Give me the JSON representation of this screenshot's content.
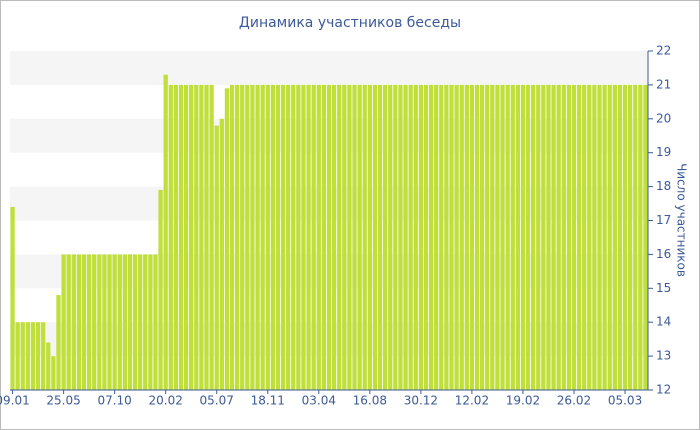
{
  "chart_data": {
    "type": "bar",
    "title": "Динамика участников беседы",
    "y_axis_label": "Число участников",
    "categories": [
      "09.01",
      null,
      null,
      null,
      null,
      null,
      null,
      null,
      null,
      null,
      "25.05",
      null,
      null,
      null,
      null,
      null,
      null,
      null,
      null,
      null,
      "07.10",
      null,
      null,
      null,
      null,
      null,
      null,
      null,
      null,
      null,
      "20.02",
      null,
      null,
      null,
      null,
      null,
      null,
      null,
      null,
      null,
      "05.07",
      null,
      null,
      null,
      null,
      null,
      null,
      null,
      null,
      null,
      "18.11",
      null,
      null,
      null,
      null,
      null,
      null,
      null,
      null,
      null,
      "03.04",
      null,
      null,
      null,
      null,
      null,
      null,
      null,
      null,
      null,
      "16.08",
      null,
      null,
      null,
      null,
      null,
      null,
      null,
      null,
      null,
      "30.12",
      null,
      null,
      null,
      null,
      null,
      null,
      null,
      null,
      null,
      "12.02",
      null,
      null,
      null,
      null,
      null,
      null,
      null,
      null,
      null,
      "19.02",
      null,
      null,
      null,
      null,
      null,
      null,
      null,
      null,
      null,
      "26.02",
      null,
      null,
      null,
      null,
      null,
      null,
      null,
      null,
      null,
      "05.03",
      null,
      null,
      null,
      null
    ],
    "values": [
      17.4,
      14,
      14,
      14,
      14,
      14,
      14,
      13.4,
      13,
      14.8,
      16,
      16,
      16,
      16,
      16,
      16,
      16,
      16,
      16,
      16,
      16,
      16,
      16,
      16,
      16,
      16,
      16,
      16,
      16,
      17.9,
      21.3,
      21,
      21,
      21,
      21,
      21,
      21,
      21,
      21,
      21,
      19.8,
      20,
      20.9,
      21,
      21,
      21,
      21,
      21,
      21,
      21,
      21,
      21,
      21,
      21,
      21,
      21,
      21,
      21,
      21,
      21,
      21,
      21,
      21,
      21,
      21,
      21,
      21,
      21,
      21,
      21,
      21,
      21,
      21,
      21,
      21,
      21,
      21,
      21,
      21,
      21,
      21,
      21,
      21,
      21,
      21,
      21,
      21,
      21,
      21,
      21,
      21,
      21,
      21,
      21,
      21,
      21,
      21,
      21,
      21,
      21,
      21,
      21,
      21,
      21,
      21,
      21,
      21,
      21,
      21,
      21,
      21,
      21,
      21,
      21,
      21,
      21,
      21,
      21,
      21,
      21,
      21,
      21,
      21,
      21,
      21
    ],
    "color": "#c0df3a",
    "ylim": [
      12,
      22
    ],
    "yticks": [
      12,
      13,
      14,
      15,
      16,
      17,
      18,
      19,
      20,
      21,
      22
    ],
    "y_axis_side": "right",
    "grid": "bands",
    "band_color": "#f5f5f5"
  }
}
